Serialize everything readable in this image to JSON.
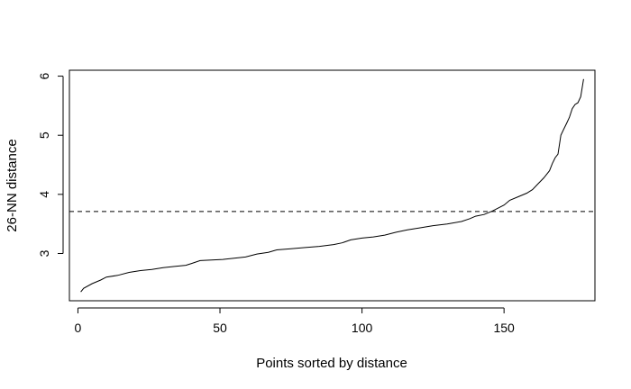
{
  "chart_data": {
    "type": "line",
    "title": "",
    "xlabel": "Points sorted by distance",
    "ylabel": "26-NN distance",
    "xlim": [
      -3,
      182
    ],
    "ylim": [
      2.2,
      6.1
    ],
    "x_ticks": [
      0,
      50,
      100,
      150
    ],
    "y_ticks": [
      3,
      4,
      5,
      6
    ],
    "grid": false,
    "series": [
      {
        "x": [
          1,
          2,
          5,
          8,
          10,
          14,
          18,
          22,
          26,
          30,
          34,
          38,
          40,
          43,
          47,
          51,
          55,
          59,
          63,
          67,
          70,
          75,
          80,
          85,
          90,
          93,
          96,
          100,
          104,
          108,
          112,
          116,
          120,
          125,
          130,
          135,
          138,
          140,
          143,
          146,
          148,
          150,
          152,
          155,
          158,
          160,
          162,
          164,
          166,
          167,
          168,
          169,
          170,
          171,
          172,
          173,
          174,
          175,
          176,
          177,
          178
        ],
        "y": [
          2.35,
          2.41,
          2.49,
          2.55,
          2.6,
          2.63,
          2.68,
          2.71,
          2.73,
          2.76,
          2.78,
          2.8,
          2.83,
          2.88,
          2.89,
          2.9,
          2.92,
          2.94,
          2.99,
          3.02,
          3.06,
          3.08,
          3.1,
          3.12,
          3.15,
          3.18,
          3.23,
          3.26,
          3.28,
          3.31,
          3.36,
          3.4,
          3.43,
          3.47,
          3.5,
          3.54,
          3.59,
          3.63,
          3.66,
          3.72,
          3.77,
          3.82,
          3.9,
          3.96,
          4.02,
          4.08,
          4.18,
          4.28,
          4.4,
          4.52,
          4.62,
          4.68,
          5.0,
          5.1,
          5.2,
          5.3,
          5.45,
          5.52,
          5.55,
          5.65,
          5.95
        ]
      }
    ],
    "hline": {
      "y": 3.71,
      "style": "dashed"
    }
  }
}
